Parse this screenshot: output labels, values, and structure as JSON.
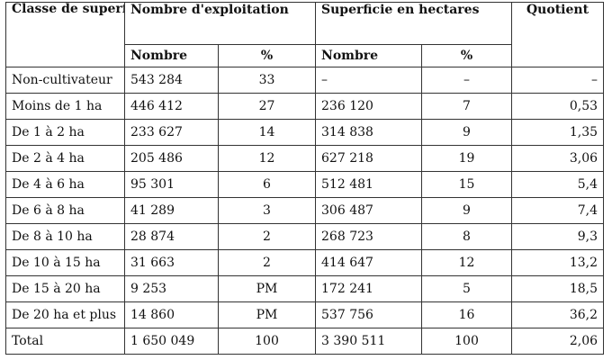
{
  "table": {
    "headers": {
      "classe": "Classe de superficies",
      "exploitation": "Nombre d'exploitation",
      "superficie": "Superficie en hectares",
      "quotient": "Quotient",
      "nombre1": "Nombre",
      "pct1": "%",
      "nombre2": "Nombre",
      "pct2": "%"
    },
    "rows": [
      {
        "classe": "Non-cultivateur",
        "nombre": "543 284",
        "pct": "33",
        "sup": "–",
        "sup_pct": "–",
        "quotient": "–"
      },
      {
        "classe": "Moins de 1 ha",
        "nombre": "446 412",
        "pct": "27",
        "sup": "236 120",
        "sup_pct": "7",
        "quotient": "0,53"
      },
      {
        "classe": "De 1 à 2 ha",
        "nombre": "233 627",
        "pct": "14",
        "sup": "314 838",
        "sup_pct": "9",
        "quotient": "1,35"
      },
      {
        "classe": "De 2 à 4 ha",
        "nombre": "205 486",
        "pct": "12",
        "sup": "627 218",
        "sup_pct": "19",
        "quotient": "3,06"
      },
      {
        "classe": "De 4 à 6 ha",
        "nombre": "95 301",
        "pct": "6",
        "sup": "512 481",
        "sup_pct": "15",
        "quotient": "5,4"
      },
      {
        "classe": "De 6 à 8 ha",
        "nombre": "41 289",
        "pct": "3",
        "sup": "306 487",
        "sup_pct": "9",
        "quotient": "7,4"
      },
      {
        "classe": "De 8 à 10 ha",
        "nombre": "28 874",
        "pct": "2",
        "sup": "268 723",
        "sup_pct": "8",
        "quotient": "9,3"
      },
      {
        "classe": "De 10 à 15 ha",
        "nombre": "31 663",
        "pct": "2",
        "sup": "414 647",
        "sup_pct": "12",
        "quotient": "13,2"
      },
      {
        "classe": "De 15 à 20 ha",
        "nombre": "9 253",
        "pct": "PM",
        "sup": "172 241",
        "sup_pct": "5",
        "quotient": "18,5"
      },
      {
        "classe": "De 20 ha et plus",
        "nombre": "14 860",
        "pct": "PM",
        "sup": "537 756",
        "sup_pct": "16",
        "quotient": "36,2"
      },
      {
        "classe": "Total",
        "nombre": "1 650 049",
        "pct": "100",
        "sup": "3 390 511",
        "sup_pct": "100",
        "quotient": "2,06"
      }
    ]
  }
}
